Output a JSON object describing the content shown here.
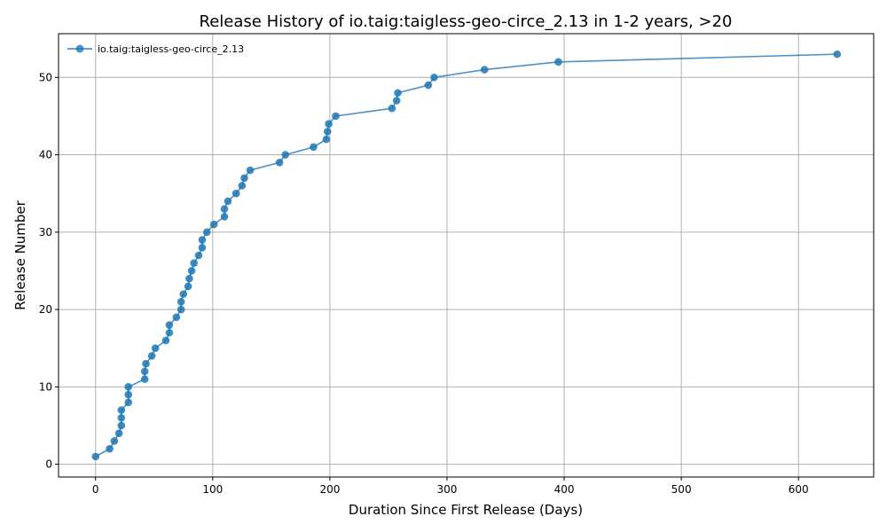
{
  "chart_data": {
    "type": "line",
    "title": "Release History of io.taig:taigless-geo-circe_2.13 in 1-2 years, >20",
    "xlabel": "Duration Since First Release (Days)",
    "ylabel": "Release Number",
    "xlim": [
      -31.6,
      664.2
    ],
    "ylim": [
      -1.65,
      55.65
    ],
    "xticks": [
      0,
      100,
      200,
      300,
      400,
      500,
      600
    ],
    "yticks": [
      0,
      10,
      20,
      30,
      40,
      50
    ],
    "grid": true,
    "legend_position": "top-left",
    "series_color": "#1f77b4",
    "series": [
      {
        "name": "io.taig:taigless-geo-circe_2.13",
        "x": [
          0,
          12,
          16,
          20,
          22,
          22,
          22,
          28,
          28,
          28,
          42,
          42,
          43,
          48,
          51,
          60,
          63,
          63,
          69,
          73,
          73,
          75,
          79,
          80,
          82,
          84,
          88,
          91,
          91,
          95,
          101,
          110,
          110,
          113,
          120,
          125,
          127,
          132,
          157,
          162,
          186,
          197,
          198,
          199,
          205,
          253,
          257,
          258,
          284,
          289,
          332,
          395,
          633
        ],
        "y": [
          1,
          2,
          3,
          4,
          5,
          6,
          7,
          8,
          9,
          10,
          11,
          12,
          13,
          14,
          15,
          16,
          17,
          18,
          19,
          20,
          21,
          22,
          23,
          24,
          25,
          26,
          27,
          28,
          29,
          30,
          31,
          32,
          33,
          34,
          35,
          36,
          37,
          38,
          39,
          40,
          41,
          42,
          43,
          44,
          45,
          46,
          47,
          48,
          49,
          50,
          51,
          52,
          53
        ]
      }
    ]
  }
}
